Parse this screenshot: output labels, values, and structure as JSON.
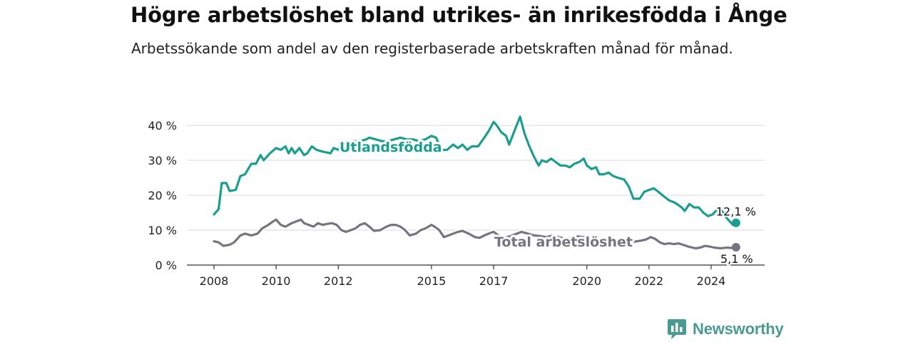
{
  "title": "Högre arbetslöshet bland utrikes- än inrikesfödda i Ånge",
  "subtitle": "Arbetssökande som andel av den registerbaserade arbetskraften månad för månad.",
  "brand": {
    "name": "Newsworthy",
    "color": "#4a9a91"
  },
  "chart_data": {
    "type": "line",
    "ylim": [
      0,
      40
    ],
    "yticks": [
      0,
      10,
      20,
      30,
      40
    ],
    "ytick_labels": [
      "0 %",
      "10 %",
      "20 %",
      "30 %",
      "40 %"
    ],
    "xticks": [
      2008,
      2010,
      2012,
      2015,
      2017,
      2020,
      2022,
      2024
    ],
    "grid": true,
    "series": [
      {
        "name": "Utlandsfödda",
        "color": "#1a9e8f",
        "end_label": "12,1 %",
        "points": [
          [
            2008.0,
            14.5
          ],
          [
            2008.15,
            16
          ],
          [
            2008.25,
            23.5
          ],
          [
            2008.4,
            23.5
          ],
          [
            2008.5,
            21.2
          ],
          [
            2008.7,
            21.5
          ],
          [
            2008.85,
            25.5
          ],
          [
            2009.0,
            26
          ],
          [
            2009.2,
            29
          ],
          [
            2009.35,
            29
          ],
          [
            2009.5,
            31.5
          ],
          [
            2009.6,
            30
          ],
          [
            2009.8,
            32
          ],
          [
            2010.0,
            33.5
          ],
          [
            2010.15,
            33
          ],
          [
            2010.3,
            34
          ],
          [
            2010.4,
            32
          ],
          [
            2010.5,
            33.5
          ],
          [
            2010.6,
            32
          ],
          [
            2010.75,
            33.5
          ],
          [
            2010.9,
            31.5
          ],
          [
            2011.0,
            32
          ],
          [
            2011.15,
            34
          ],
          [
            2011.3,
            33
          ],
          [
            2011.5,
            32.5
          ],
          [
            2011.75,
            32
          ],
          [
            2011.85,
            33.5
          ],
          [
            2012.0,
            33
          ],
          [
            2012.15,
            35
          ],
          [
            2012.3,
            35
          ],
          [
            2012.5,
            35.5
          ],
          [
            2012.7,
            35.5
          ],
          [
            2012.9,
            36
          ],
          [
            2013.0,
            36.5
          ],
          [
            2013.2,
            36
          ],
          [
            2013.4,
            35.5
          ],
          [
            2013.6,
            35.5
          ],
          [
            2013.8,
            36
          ],
          [
            2014.0,
            36.5
          ],
          [
            2014.2,
            36
          ],
          [
            2014.4,
            36
          ],
          [
            2014.6,
            35.5
          ],
          [
            2014.8,
            36
          ],
          [
            2015.0,
            37
          ],
          [
            2015.15,
            36.5
          ],
          [
            2015.3,
            33
          ],
          [
            2015.5,
            33
          ],
          [
            2015.7,
            34.5
          ],
          [
            2015.85,
            33.5
          ],
          [
            2016.0,
            34.5
          ],
          [
            2016.15,
            33
          ],
          [
            2016.3,
            34
          ],
          [
            2016.5,
            34
          ],
          [
            2016.7,
            36.5
          ],
          [
            2016.85,
            38.5
          ],
          [
            2017.0,
            41
          ],
          [
            2017.1,
            40
          ],
          [
            2017.25,
            38
          ],
          [
            2017.4,
            37
          ],
          [
            2017.5,
            34.5
          ],
          [
            2017.65,
            38
          ],
          [
            2017.85,
            42.5
          ],
          [
            2018.0,
            37.5
          ],
          [
            2018.15,
            34
          ],
          [
            2018.3,
            31
          ],
          [
            2018.45,
            28.5
          ],
          [
            2018.55,
            30
          ],
          [
            2018.7,
            29.5
          ],
          [
            2018.85,
            30.5
          ],
          [
            2019.0,
            29.5
          ],
          [
            2019.15,
            28.5
          ],
          [
            2019.3,
            28.5
          ],
          [
            2019.45,
            28
          ],
          [
            2019.6,
            29
          ],
          [
            2019.75,
            29.5
          ],
          [
            2019.9,
            30.5
          ],
          [
            2020.0,
            28.5
          ],
          [
            2020.15,
            27.5
          ],
          [
            2020.3,
            28
          ],
          [
            2020.4,
            26
          ],
          [
            2020.55,
            26
          ],
          [
            2020.7,
            26.5
          ],
          [
            2020.85,
            25.5
          ],
          [
            2021.0,
            25
          ],
          [
            2021.2,
            24.5
          ],
          [
            2021.35,
            22.5
          ],
          [
            2021.5,
            19
          ],
          [
            2021.7,
            19
          ],
          [
            2021.85,
            21
          ],
          [
            2022.0,
            21.5
          ],
          [
            2022.15,
            22
          ],
          [
            2022.3,
            21
          ],
          [
            2022.5,
            19.5
          ],
          [
            2022.65,
            18.5
          ],
          [
            2022.8,
            18
          ],
          [
            2022.9,
            17.5
          ],
          [
            2023.05,
            16.5
          ],
          [
            2023.15,
            15.5
          ],
          [
            2023.3,
            17.5
          ],
          [
            2023.45,
            16.5
          ],
          [
            2023.6,
            16.5
          ],
          [
            2023.75,
            15
          ],
          [
            2023.9,
            14
          ],
          [
            2024.05,
            14.5
          ],
          [
            2024.15,
            15.5
          ],
          [
            2024.25,
            16.5
          ],
          [
            2024.4,
            15
          ],
          [
            2024.5,
            13.5
          ],
          [
            2024.6,
            12.5
          ],
          [
            2024.7,
            11.5
          ],
          [
            2024.8,
            12.1
          ]
        ]
      },
      {
        "name": "Total arbetslöshet",
        "color": "#777480",
        "end_label": "5,1 %",
        "points": [
          [
            2008.0,
            6.8
          ],
          [
            2008.15,
            6.5
          ],
          [
            2008.3,
            5.5
          ],
          [
            2008.5,
            5.8
          ],
          [
            2008.65,
            6.5
          ],
          [
            2008.85,
            8.5
          ],
          [
            2009.0,
            9
          ],
          [
            2009.2,
            8.5
          ],
          [
            2009.4,
            9
          ],
          [
            2009.55,
            10.5
          ],
          [
            2009.75,
            11.5
          ],
          [
            2009.9,
            12.5
          ],
          [
            2010.0,
            13
          ],
          [
            2010.15,
            11.5
          ],
          [
            2010.3,
            11
          ],
          [
            2010.5,
            12
          ],
          [
            2010.65,
            12.5
          ],
          [
            2010.8,
            13
          ],
          [
            2010.9,
            12
          ],
          [
            2011.05,
            11.5
          ],
          [
            2011.2,
            11
          ],
          [
            2011.35,
            12
          ],
          [
            2011.5,
            11.5
          ],
          [
            2011.65,
            11.8
          ],
          [
            2011.8,
            12
          ],
          [
            2011.95,
            11.5
          ],
          [
            2012.1,
            10
          ],
          [
            2012.25,
            9.5
          ],
          [
            2012.4,
            10
          ],
          [
            2012.55,
            10.5
          ],
          [
            2012.7,
            11.5
          ],
          [
            2012.85,
            12
          ],
          [
            2013.0,
            11
          ],
          [
            2013.15,
            9.8
          ],
          [
            2013.35,
            10
          ],
          [
            2013.55,
            11
          ],
          [
            2013.7,
            11.5
          ],
          [
            2013.85,
            11.5
          ],
          [
            2014.0,
            11
          ],
          [
            2014.15,
            10
          ],
          [
            2014.3,
            8.5
          ],
          [
            2014.5,
            9
          ],
          [
            2014.65,
            10
          ],
          [
            2014.8,
            10.5
          ],
          [
            2015.0,
            11.5
          ],
          [
            2015.1,
            11
          ],
          [
            2015.25,
            10
          ],
          [
            2015.4,
            8
          ],
          [
            2015.55,
            8.5
          ],
          [
            2015.7,
            9
          ],
          [
            2015.85,
            9.5
          ],
          [
            2016.0,
            9.8
          ],
          [
            2016.2,
            9
          ],
          [
            2016.4,
            8
          ],
          [
            2016.55,
            7.8
          ],
          [
            2016.7,
            8.5
          ],
          [
            2016.9,
            9.2
          ],
          [
            2017.0,
            9.5
          ],
          [
            2017.15,
            8.5
          ],
          [
            2017.35,
            7.8
          ],
          [
            2017.55,
            8.3
          ],
          [
            2017.75,
            9
          ],
          [
            2017.9,
            9.5
          ],
          [
            2018.1,
            9
          ],
          [
            2018.3,
            8.5
          ],
          [
            2018.5,
            8.3
          ],
          [
            2018.7,
            8
          ],
          [
            2018.9,
            8.5
          ],
          [
            2019.1,
            8
          ],
          [
            2019.3,
            7.5
          ],
          [
            2019.5,
            7.8
          ],
          [
            2019.7,
            8.2
          ],
          [
            2019.9,
            8
          ],
          [
            2020.1,
            7.8
          ],
          [
            2020.3,
            7.5
          ],
          [
            2020.5,
            7.2
          ],
          [
            2020.7,
            7
          ],
          [
            2020.9,
            7.3
          ],
          [
            2021.1,
            7
          ],
          [
            2021.3,
            6.8
          ],
          [
            2021.45,
            6.6
          ],
          [
            2021.6,
            6.8
          ],
          [
            2021.75,
            7
          ],
          [
            2021.9,
            7.3
          ],
          [
            2022.05,
            8
          ],
          [
            2022.2,
            7.5
          ],
          [
            2022.35,
            6.5
          ],
          [
            2022.5,
            6
          ],
          [
            2022.65,
            6.2
          ],
          [
            2022.8,
            6
          ],
          [
            2022.95,
            6.2
          ],
          [
            2023.1,
            5.8
          ],
          [
            2023.3,
            5.2
          ],
          [
            2023.5,
            4.8
          ],
          [
            2023.65,
            5
          ],
          [
            2023.8,
            5.5
          ],
          [
            2023.95,
            5.3
          ],
          [
            2024.1,
            5
          ],
          [
            2024.3,
            4.8
          ],
          [
            2024.5,
            5
          ],
          [
            2024.65,
            4.9
          ],
          [
            2024.8,
            5.1
          ]
        ]
      }
    ]
  }
}
